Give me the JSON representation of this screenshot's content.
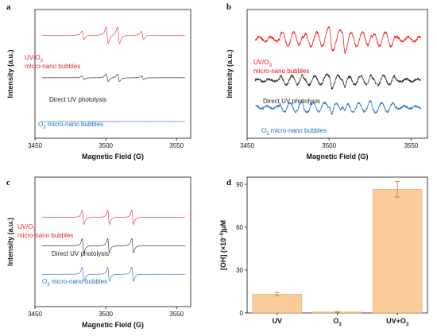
{
  "chart_data": [
    {
      "panel": "a",
      "type": "line",
      "xlabel": "Magnetic Field (G)",
      "ylabel": "Intensity (a.u.)",
      "xlim": [
        3450,
        3560
      ],
      "xticks": [
        3450,
        3500,
        3550
      ],
      "series": [
        {
          "name": "UV/O",
          "sub": "3",
          "name2": "micro-nano bubbles",
          "color": "#e8262a",
          "level": 0.8,
          "amplitude": 1.0,
          "peaks": [
            3484,
            3501,
            3509,
            3526
          ]
        },
        {
          "name": "Direct UV photolysis",
          "color": "#222222",
          "level": 0.47,
          "amplitude": 0.45,
          "peaks": [
            3484,
            3501,
            3509,
            3526
          ]
        },
        {
          "name": "O",
          "sub": "3",
          "name2": " micro-nano bubbles",
          "color": "#1f6cc4",
          "level": 0.13,
          "amplitude": 0.04,
          "peaks": []
        }
      ]
    },
    {
      "panel": "b",
      "type": "line",
      "xlabel": "Magnetic Field (G)",
      "ylabel": "Intensity (a.u.)",
      "xlim": [
        3450,
        3560
      ],
      "xticks": [
        3450,
        3500,
        3550
      ],
      "series": [
        {
          "name": "UV/O",
          "sub": "3",
          "name2": "micro-nano bubbles",
          "color": "#ff0000",
          "level": 0.77,
          "amplitude": 0.8,
          "peaks": [
            3484,
            3501,
            3509,
            3526
          ]
        },
        {
          "name": "Direct UV photolysis",
          "color": "#222222",
          "level": 0.45,
          "amplitude": 0.5,
          "peaks": [
            3484,
            3501,
            3509,
            3526
          ]
        },
        {
          "name": "O",
          "sub": "3",
          "name2": " micro-nano bubbles",
          "color": "#1f6cc4",
          "level": 0.24,
          "amplitude": 0.5,
          "peaks": [
            3484,
            3501,
            3509,
            3526
          ]
        }
      ]
    },
    {
      "panel": "c",
      "type": "line",
      "xlabel": "Magnetic Field (G)",
      "ylabel": "Intensity (a.u.)",
      "xlim": [
        3450,
        3560
      ],
      "xticks": [
        3450,
        3500,
        3550
      ],
      "series": [
        {
          "name": "UV/O",
          "sub": "3",
          "name2": "micro-nano bubbles",
          "color": "#e8262a",
          "level": 0.69,
          "amplitude": 0.85,
          "peaks": [
            3484,
            3502,
            3519
          ]
        },
        {
          "name": "Direct UV photolysis",
          "color": "#222222",
          "level": 0.47,
          "amplitude": 0.85,
          "peaks": [
            3484,
            3502,
            3519
          ]
        },
        {
          "name": "O",
          "sub": "3",
          "name2": " micro-nano bubbles",
          "color": "#1f6cc4",
          "level": 0.25,
          "amplitude": 0.85,
          "peaks": [
            3484,
            3502,
            3519
          ]
        }
      ]
    },
    {
      "panel": "d",
      "type": "bar",
      "ylabel": "[OH] (×10",
      "ylabel_sup": "−5",
      "ylabel_end": ")μM",
      "categories": [
        {
          "label": "UV",
          "sub": ""
        },
        {
          "label": "O",
          "sub": "3"
        },
        {
          "label": "UV+O",
          "sub": "3"
        }
      ],
      "values": [
        13.2,
        0.7,
        86.5
      ],
      "errors": [
        1.2,
        0.3,
        5.5
      ],
      "ylim": [
        0,
        95
      ],
      "yticks": [
        0,
        30,
        60,
        90
      ],
      "bar_color": "#f9c790",
      "edge_color": "#e8a050",
      "err_color": "#c8782a"
    }
  ]
}
